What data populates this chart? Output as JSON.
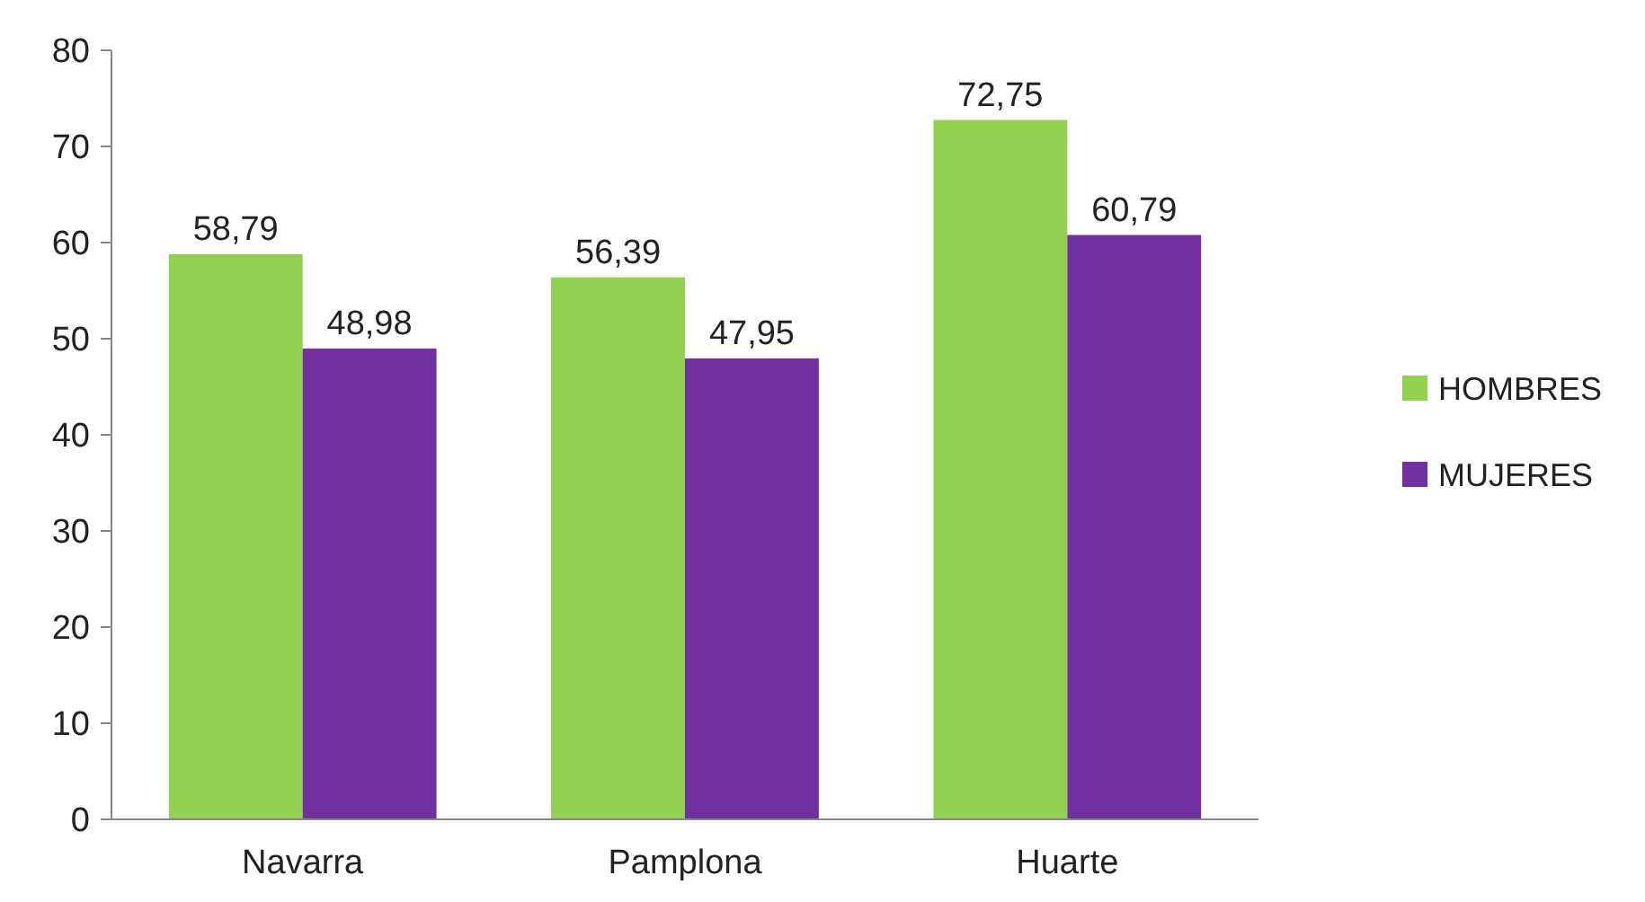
{
  "chart_data": {
    "type": "bar",
    "categories": [
      "Navarra",
      "Pamplona",
      "Huarte"
    ],
    "series": [
      {
        "name": "HOMBRES",
        "color": "#92d050",
        "values": [
          58.79,
          56.39,
          72.75
        ],
        "value_labels": [
          "58,79",
          "56,39",
          "72,75"
        ]
      },
      {
        "name": "MUJERES",
        "color": "#7030a0",
        "values": [
          48.98,
          47.95,
          60.79
        ],
        "value_labels": [
          "48,98",
          "47,95",
          "60,79"
        ]
      }
    ],
    "ylim": [
      0,
      80
    ],
    "yticks": [
      0,
      10,
      20,
      30,
      40,
      50,
      60,
      70,
      80
    ],
    "grid": false,
    "legend": "right"
  }
}
